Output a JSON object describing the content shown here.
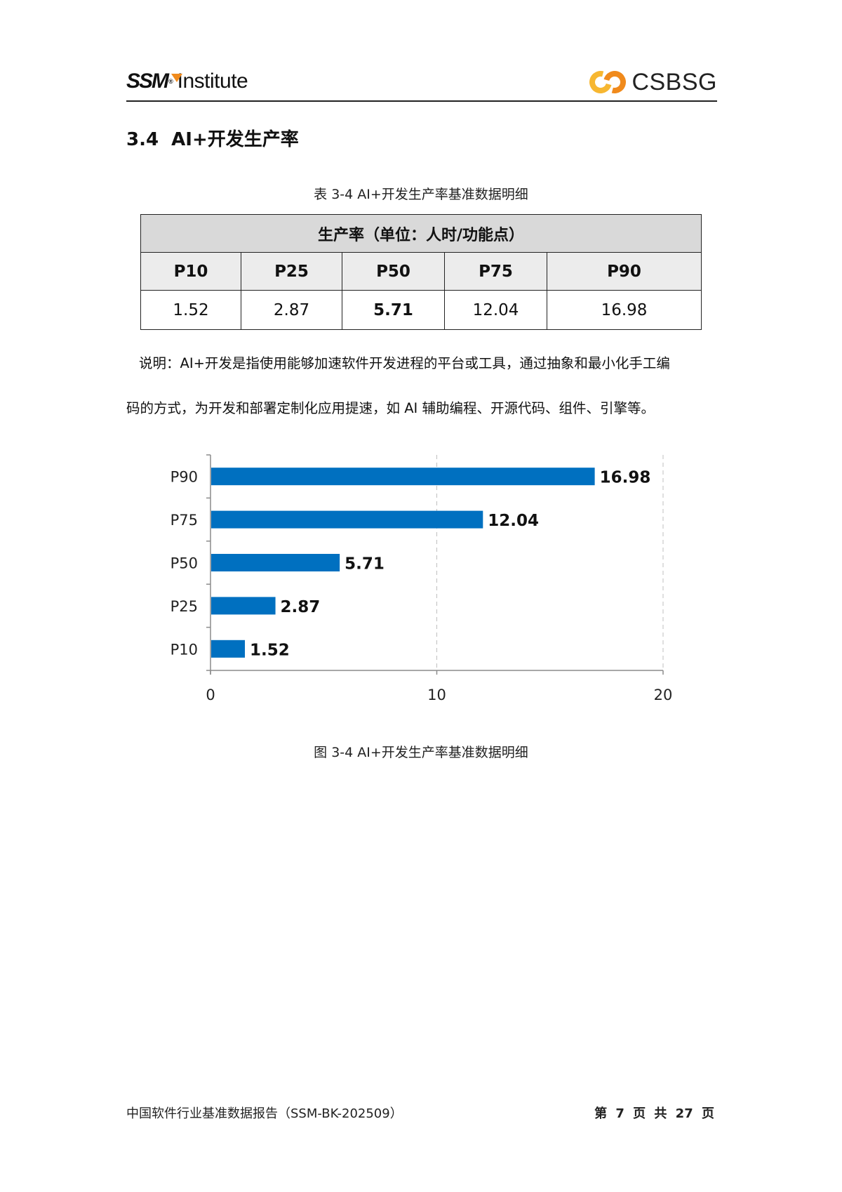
{
  "header": {
    "left_logo_mark": "SSM",
    "left_logo_reg": "®",
    "left_logo_text": "Institute",
    "right_logo_text": "CSBSG",
    "brand_orange": "#f08a1c",
    "brand_yellow": "#f7b731"
  },
  "section": {
    "title": "3.4  AI+开发生产率"
  },
  "table": {
    "caption": "表 3-4 AI+开发生产率基准数据明细",
    "title": "生产率（单位：人时/功能点）",
    "headers": [
      "P10",
      "P25",
      "P50",
      "P75",
      "P90"
    ],
    "values": [
      "1.52",
      "2.87",
      "5.71",
      "12.04",
      "16.98"
    ],
    "bold_index": 2
  },
  "description": {
    "line1": "说明：AI+开发是指使用能够加速软件开发进程的平台或工具，通过抽象和最小化手工编",
    "line2": "码的方式，为开发和部署定制化应用提速，如 AI 辅助编程、开源代码、组件、引擎等。"
  },
  "figure": {
    "caption": "图 3-4 AI+开发生产率基准数据明细"
  },
  "chart_data": {
    "type": "bar",
    "orientation": "horizontal",
    "title": "",
    "categories": [
      "P90",
      "P75",
      "P50",
      "P25",
      "P10"
    ],
    "values": [
      16.98,
      12.04,
      5.71,
      2.87,
      1.52
    ],
    "value_labels": [
      "16.98",
      "12.04",
      "5.71",
      "2.87",
      "1.52"
    ],
    "xlabel": "",
    "ylabel": "",
    "xlim": [
      0,
      20
    ],
    "xticks": [
      "0",
      "10",
      "20"
    ],
    "grid": "vertical dashed",
    "legend": "none",
    "bar_color": "#0070c0"
  },
  "footer": {
    "left": "中国软件行业基准数据报告（SSM-BK-202509）",
    "right": "第 7 页 共 27 页"
  }
}
